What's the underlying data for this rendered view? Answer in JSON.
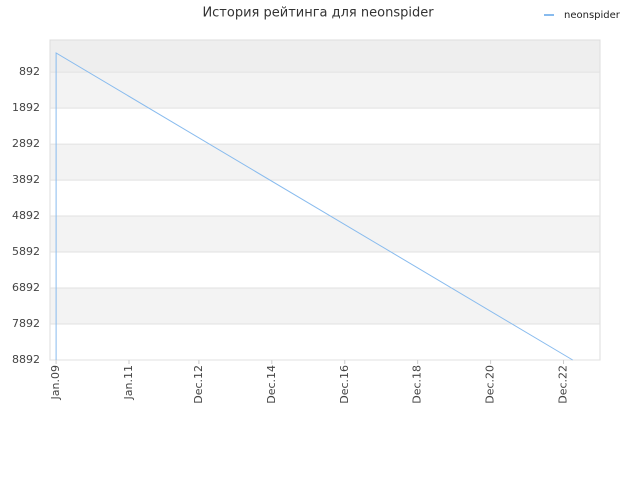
{
  "chart_data": {
    "type": "line",
    "title": "История рейтинга для neonspider",
    "x": [
      "2009-01",
      "2009-01",
      "2023-03"
    ],
    "series": [
      {
        "name": "neonspider",
        "color": "#88bbee",
        "values": [
          8892,
          361,
          8892
        ]
      }
    ],
    "xlim": [
      "2008-11",
      "2023-12"
    ],
    "xticks": [
      {
        "value": "2009-01",
        "label": "Jan.09"
      },
      {
        "value": "2011-01",
        "label": "Jan.11"
      },
      {
        "value": "2012-12",
        "label": "Dec.12"
      },
      {
        "value": "2014-12",
        "label": "Dec.14"
      },
      {
        "value": "2016-12",
        "label": "Dec.16"
      },
      {
        "value": "2018-12",
        "label": "Dec.18"
      },
      {
        "value": "2020-12",
        "label": "Dec.20"
      },
      {
        "value": "2022-12",
        "label": "Dec.22"
      }
    ],
    "ylim": [
      8892,
      0
    ],
    "yticks": [
      892,
      1892,
      2892,
      3892,
      4892,
      5892,
      6892,
      7892,
      8892
    ],
    "grid": true,
    "legend": "top-right"
  }
}
